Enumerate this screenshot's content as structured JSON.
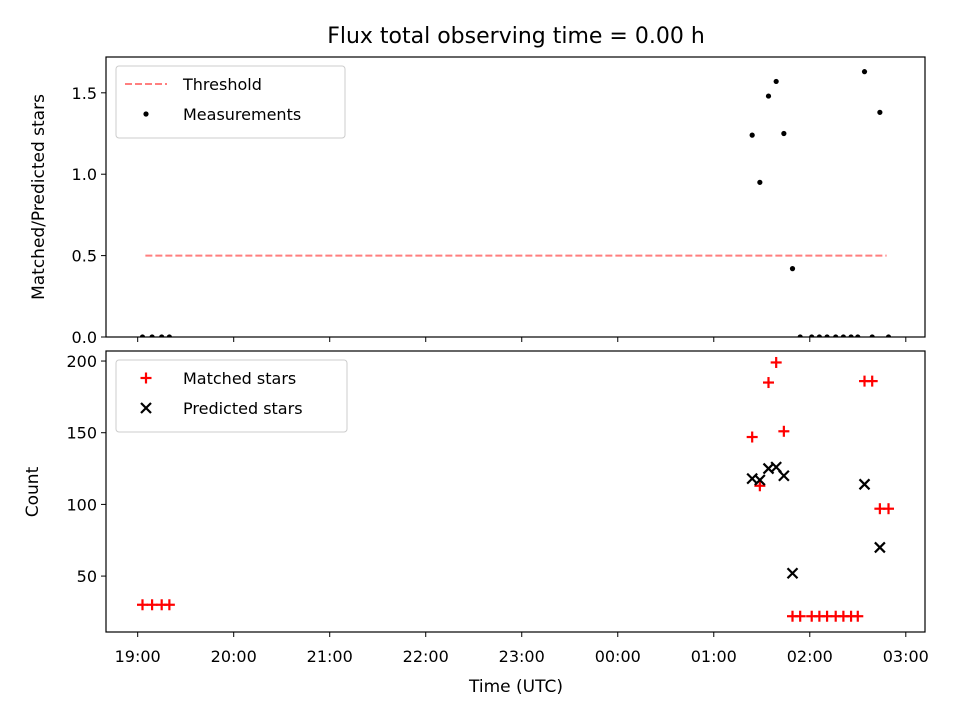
{
  "chart_data": {
    "title": "Flux total observing time = 0.00 h",
    "xlabel": "Time (UTC)",
    "x_ticks": [
      "19:00",
      "20:00",
      "21:00",
      "22:00",
      "23:00",
      "00:00",
      "01:00",
      "02:00",
      "03:00"
    ],
    "xlim_hours": [
      18.67,
      27.2
    ],
    "panels": [
      {
        "type": "scatter",
        "ylabel": "Matched/Predicted stars",
        "ylim": [
          0,
          1.72
        ],
        "y_ticks": [
          0.0,
          0.5,
          1.0,
          1.5
        ],
        "y_tick_labels": [
          "0.0",
          "0.5",
          "1.0",
          "1.5"
        ],
        "legend_position": "top-left",
        "threshold": {
          "name": "Threshold",
          "value": 0.5,
          "x_start": 19.08,
          "x_end": 26.8,
          "color": "#ff7f7f"
        },
        "series": [
          {
            "name": "Measurements",
            "marker": "dot",
            "color": "#000000",
            "points": [
              [
                19.05,
                0.0
              ],
              [
                19.15,
                0.0
              ],
              [
                19.25,
                0.0
              ],
              [
                19.33,
                0.0
              ],
              [
                25.4,
                1.24
              ],
              [
                25.48,
                0.95
              ],
              [
                25.57,
                1.48
              ],
              [
                25.65,
                1.57
              ],
              [
                25.73,
                1.25
              ],
              [
                25.82,
                0.42
              ],
              [
                25.9,
                0.0
              ],
              [
                26.02,
                0.0
              ],
              [
                26.1,
                0.0
              ],
              [
                26.18,
                0.0
              ],
              [
                26.27,
                0.0
              ],
              [
                26.35,
                0.0
              ],
              [
                26.43,
                0.0
              ],
              [
                26.5,
                0.0
              ],
              [
                26.57,
                1.63
              ],
              [
                26.65,
                0.0
              ],
              [
                26.73,
                1.38
              ],
              [
                26.82,
                0.0
              ]
            ]
          }
        ]
      },
      {
        "type": "scatter",
        "ylabel": "Count",
        "ylim": [
          11,
          207
        ],
        "y_ticks": [
          50,
          100,
          150,
          200
        ],
        "y_tick_labels": [
          "50",
          "100",
          "150",
          "200"
        ],
        "legend_position": "top-left",
        "series": [
          {
            "name": "Matched stars",
            "marker": "plus",
            "color": "#ff0000",
            "points": [
              [
                19.05,
                30
              ],
              [
                19.15,
                30
              ],
              [
                19.25,
                30
              ],
              [
                19.33,
                30
              ],
              [
                25.4,
                147
              ],
              [
                25.48,
                113
              ],
              [
                25.57,
                185
              ],
              [
                25.65,
                199
              ],
              [
                25.73,
                151
              ],
              [
                25.82,
                22
              ],
              [
                25.9,
                22
              ],
              [
                26.02,
                22
              ],
              [
                26.1,
                22
              ],
              [
                26.18,
                22
              ],
              [
                26.27,
                22
              ],
              [
                26.35,
                22
              ],
              [
                26.43,
                22
              ],
              [
                26.5,
                22
              ],
              [
                26.57,
                186
              ],
              [
                26.65,
                186
              ],
              [
                26.73,
                97
              ],
              [
                26.82,
                97
              ]
            ]
          },
          {
            "name": "Predicted stars",
            "marker": "x",
            "color": "#000000",
            "points": [
              [
                25.4,
                118
              ],
              [
                25.48,
                117
              ],
              [
                25.57,
                125
              ],
              [
                25.65,
                126
              ],
              [
                25.73,
                120
              ],
              [
                25.82,
                52
              ],
              [
                26.57,
                114
              ],
              [
                26.73,
                70
              ]
            ]
          }
        ]
      }
    ]
  }
}
